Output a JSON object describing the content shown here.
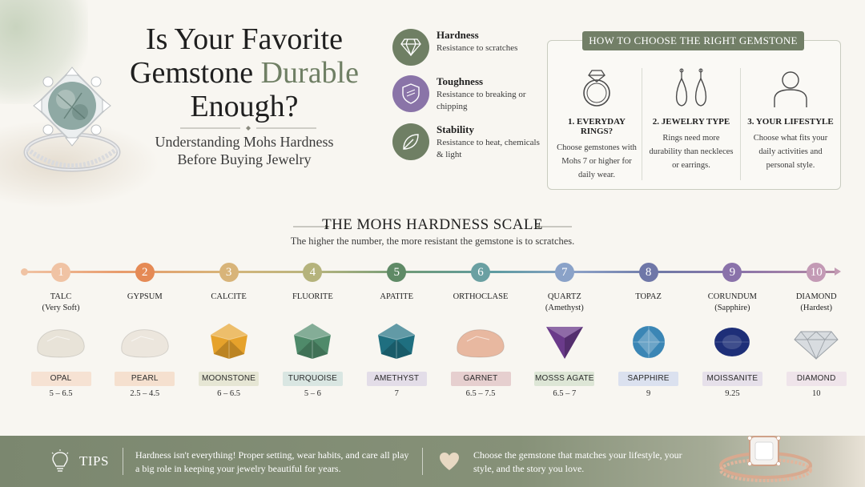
{
  "header": {
    "title_line1": "Is Your Favorite",
    "title_line2_a": "Gemstone ",
    "title_line2_b": "Durable",
    "title_line3": "Enough?",
    "subtitle_line1": "Understanding Mohs Hardness",
    "subtitle_line2": "Before Buying Jewelry"
  },
  "properties": [
    {
      "title": "Hardness",
      "desc": "Resistance to scratches",
      "icon": "diamond-icon",
      "color": "#6f7f64"
    },
    {
      "title": "Toughness",
      "desc": "Resistance to breaking or chipping",
      "icon": "shield-icon",
      "color": "#8a74a8"
    },
    {
      "title": "Stability",
      "desc": "Resistance to heat, chemicals & light",
      "icon": "leaf-icon",
      "color": "#6f7f64"
    }
  ],
  "choose": {
    "heading": "HOW TO CHOOSE THE RIGHT GEMSTONE",
    "columns": [
      {
        "title": "1. EVERYDAY RINGS?",
        "text": "Choose gemstones with Mohs 7 or higher for daily wear.",
        "icon": "ring-icon"
      },
      {
        "title": "2. JEWELRY TYPE",
        "text": "Rings need more durability than neckleces or earrings.",
        "icon": "earrings-icon"
      },
      {
        "title": "3. YOUR LIFESTYLE",
        "text": "Choose what fits your daily activities and personal style.",
        "icon": "person-icon"
      }
    ]
  },
  "scale": {
    "title": "THE MOHS HARDNESS SCALE",
    "subtitle": "The higher the number, the more resistant the gemstone is to scratches.",
    "items": [
      {
        "num": "1",
        "mineral": "TALC",
        "note": "(Very Soft)",
        "gem": "OPAL",
        "value": "5 – 6.5",
        "color": "#f0c3a4",
        "label_bg": "#f6e2d3",
        "gem_color": "#e8e3d8",
        "gem_shape": "rough"
      },
      {
        "num": "2",
        "mineral": "GYPSUM",
        "note": "",
        "gem": "PEARL",
        "value": "2.5 – 4.5",
        "color": "#e58a55",
        "label_bg": "#f5e0cf",
        "gem_color": "#ece6dd",
        "gem_shape": "rough"
      },
      {
        "num": "3",
        "mineral": "CALCITE",
        "note": "",
        "gem": "MOONSTONE",
        "value": "6 – 6.5",
        "color": "#d8b479",
        "label_bg": "#e6e6d4",
        "gem_color": "#e6a22b",
        "gem_shape": "crystal"
      },
      {
        "num": "4",
        "mineral": "FLUORITE",
        "note": "",
        "gem": "TURQUOISE",
        "value": "5 – 6",
        "color": "#b5b37c",
        "label_bg": "#d9e6e2",
        "gem_color": "#4f8a6a",
        "gem_shape": "crystal"
      },
      {
        "num": "5",
        "mineral": "APATITE",
        "note": "",
        "gem": "AMETHYST",
        "value": "7",
        "color": "#5f8a66",
        "label_bg": "#e3dde8",
        "gem_color": "#1f6f80",
        "gem_shape": "crystal"
      },
      {
        "num": "6",
        "mineral": "ORTHOCLASE",
        "note": "",
        "gem": "GARNET",
        "value": "6.5 – 7.5",
        "color": "#6aa0a2",
        "label_bg": "#e6cfcf",
        "gem_color": "#e8b8a0",
        "gem_shape": "rough"
      },
      {
        "num": "7",
        "mineral": "QUARTZ",
        "note": "(Amethyst)",
        "gem": "MOSSS AGATE",
        "value": "6.5 – 7",
        "color": "#8aa2c8",
        "label_bg": "#dde6d6",
        "gem_color": "#6a3a8a",
        "gem_shape": "trillion"
      },
      {
        "num": "8",
        "mineral": "TOPAZ",
        "note": "",
        "gem": "SAPPHIRE",
        "value": "9",
        "color": "#6f77a8",
        "label_bg": "#dbe1ef",
        "gem_color": "#3b86b5",
        "gem_shape": "round"
      },
      {
        "num": "9",
        "mineral": "CORUNDUM",
        "note": "(Sapphire)",
        "gem": "MOISSANITE",
        "value": "9.25",
        "color": "#8a72aa",
        "label_bg": "#e6e0ea",
        "gem_color": "#1e2f78",
        "gem_shape": "oval"
      },
      {
        "num": "10",
        "mineral": "DIAMOND",
        "note": "(Hardest)",
        "gem": "DIAMOND",
        "value": "10",
        "color": "#c39ab5",
        "label_bg": "#efe4ea",
        "gem_color": "#d8dce0",
        "gem_shape": "brilliant"
      }
    ]
  },
  "tips": {
    "label": "TIPS",
    "left_text": "Hardness isn't everything! Proper setting, wear habits, and care all play a big role in keeping your jewelry beautiful for years.",
    "right_text": "Choose the gemstone that matches your lifestyle, your style, and the story you love.",
    "left_icon": "lightbulb-icon",
    "right_icon": "heart-icon"
  }
}
